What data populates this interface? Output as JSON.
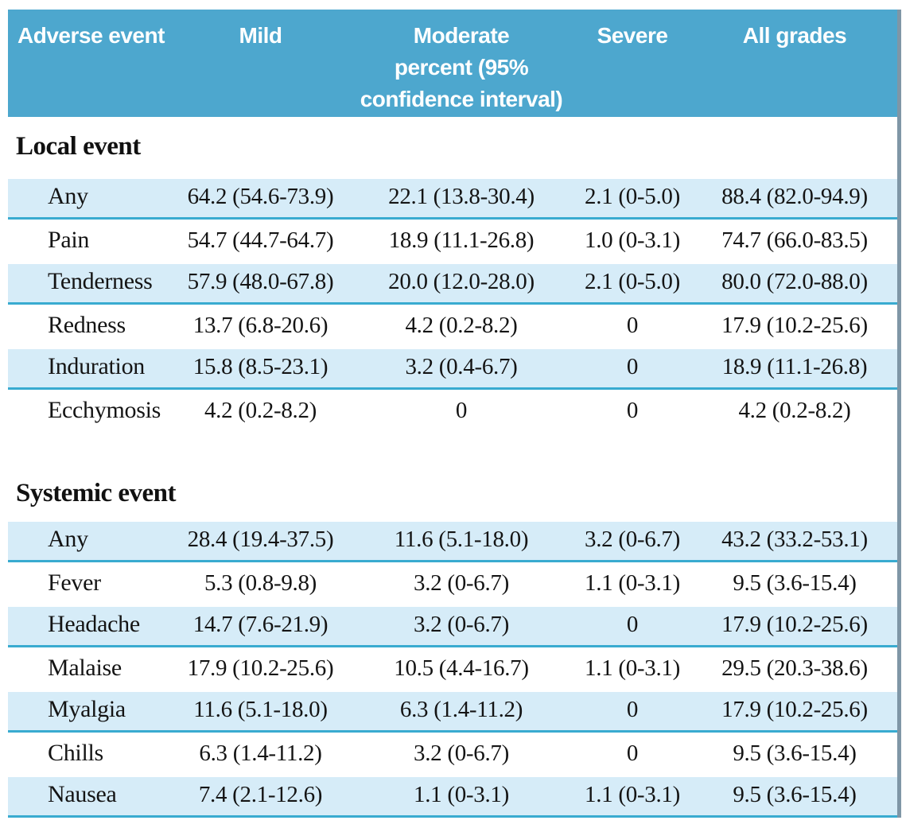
{
  "colors": {
    "header_bg": "#4DA7CE",
    "shaded_row_bg": "#D6ECF8",
    "row_rule": "#39ABD0",
    "right_border": "#7F96A6",
    "header_text": "#FFFFFF",
    "body_text": "#141414"
  },
  "table": {
    "header": {
      "col_adverse_event": "Adverse event",
      "col_mild": "Mild",
      "col_moderate_line1": "Moderate",
      "col_moderate_line2": "percent (95%",
      "col_moderate_line3": "confidence interval)",
      "col_severe": "Severe",
      "col_all_grades": "All grades"
    },
    "sections": [
      {
        "heading": "Local event",
        "rows": [
          {
            "event": "Any",
            "mild": "64.2 (54.6-73.9)",
            "moderate": "22.1 (13.8-30.4)",
            "severe": "2.1 (0-5.0)",
            "all_grades": "88.4 (82.0-94.9)"
          },
          {
            "event": "Pain",
            "mild": "54.7 (44.7-64.7)",
            "moderate": "18.9 (11.1-26.8)",
            "severe": "1.0 (0-3.1)",
            "all_grades": "74.7 (66.0-83.5)"
          },
          {
            "event": "Tenderness",
            "mild": "57.9 (48.0-67.8)",
            "moderate": "20.0 (12.0-28.0)",
            "severe": "2.1 (0-5.0)",
            "all_grades": "80.0 (72.0-88.0)"
          },
          {
            "event": "Redness",
            "mild": "13.7 (6.8-20.6)",
            "moderate": "4.2 (0.2-8.2)",
            "severe": "0",
            "all_grades": "17.9 (10.2-25.6)"
          },
          {
            "event": "Induration",
            "mild": "15.8 (8.5-23.1)",
            "moderate": "3.2 (0.4-6.7)",
            "severe": "0",
            "all_grades": "18.9 (11.1-26.8)"
          },
          {
            "event": "Ecchymosis",
            "mild": "4.2 (0.2-8.2)",
            "moderate": "0",
            "severe": "0",
            "all_grades": "4.2 (0.2-8.2)"
          }
        ]
      },
      {
        "heading": "Systemic event",
        "rows": [
          {
            "event": "Any",
            "mild": "28.4 (19.4-37.5)",
            "moderate": "11.6 (5.1-18.0)",
            "severe": "3.2 (0-6.7)",
            "all_grades": "43.2 (33.2-53.1)"
          },
          {
            "event": "Fever",
            "mild": "5.3 (0.8-9.8)",
            "moderate": "3.2 (0-6.7)",
            "severe": "1.1 (0-3.1)",
            "all_grades": "9.5 (3.6-15.4)"
          },
          {
            "event": "Headache",
            "mild": "14.7 (7.6-21.9)",
            "moderate": "3.2 (0-6.7)",
            "severe": "0",
            "all_grades": "17.9 (10.2-25.6)"
          },
          {
            "event": "Malaise",
            "mild": "17.9 (10.2-25.6)",
            "moderate": "10.5 (4.4-16.7)",
            "severe": "1.1 (0-3.1)",
            "all_grades": "29.5 (20.3-38.6)"
          },
          {
            "event": "Myalgia",
            "mild": "11.6 (5.1-18.0)",
            "moderate": "6.3 (1.4-11.2)",
            "severe": "0",
            "all_grades": "17.9 (10.2-25.6)"
          },
          {
            "event": "Chills",
            "mild": "6.3 (1.4-11.2)",
            "moderate": "3.2 (0-6.7)",
            "severe": "0",
            "all_grades": "9.5 (3.6-15.4)"
          },
          {
            "event": "Nausea",
            "mild": "7.4 (2.1-12.6)",
            "moderate": "1.1 (0-3.1)",
            "severe": "1.1 (0-3.1)",
            "all_grades": "9.5 (3.6-15.4)"
          }
        ]
      }
    ]
  }
}
